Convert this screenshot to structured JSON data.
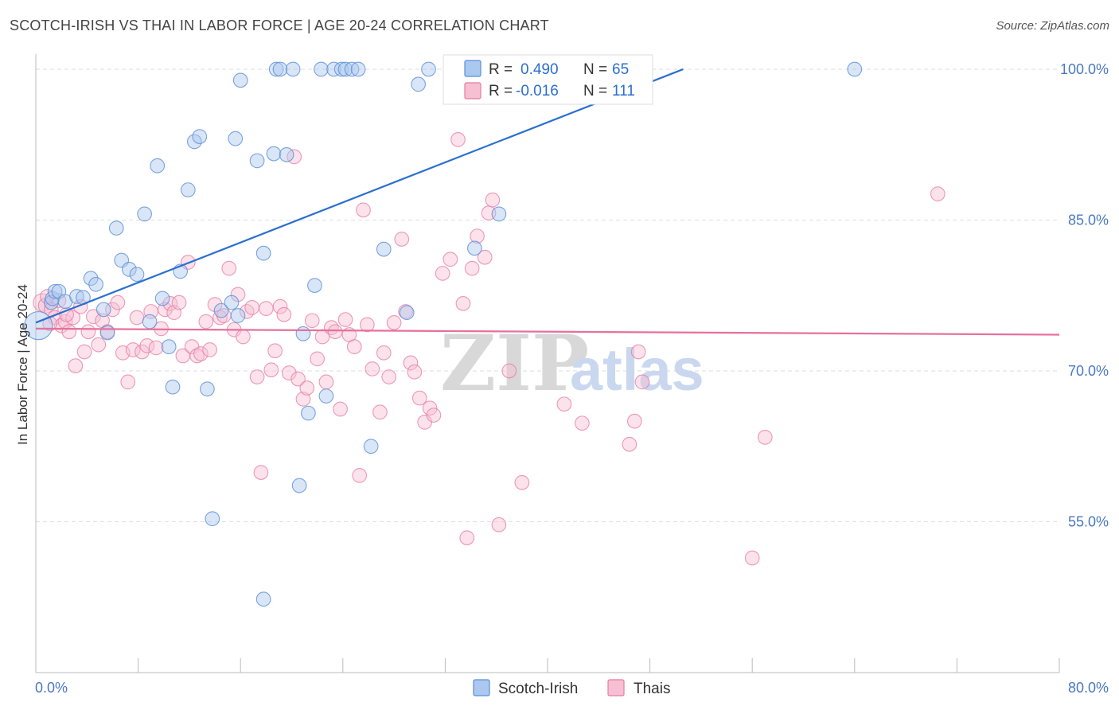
{
  "title": "SCOTCH-IRISH VS THAI IN LABOR FORCE | AGE 20-24 CORRELATION CHART",
  "source": "Source: ZipAtlas.com",
  "watermark": {
    "zip": "ZIP",
    "atlas": "atlas"
  },
  "colors": {
    "blue": "#5b8fd6",
    "blue_fill": "#aac8f0",
    "blue_line": "#2b6fd0",
    "pink": "#e87aa2",
    "pink_fill": "#f6bfd2",
    "pink_line": "#e7709b",
    "tick_text": "#4a78c2",
    "grid": "#dddddd"
  },
  "legend": {
    "rows": [
      {
        "r_label": "R =",
        "r_value": "0.490",
        "n_label": "N =",
        "n_value": "65"
      },
      {
        "r_label": "R =",
        "r_value": "-0.016",
        "n_label": "N =",
        "n_value": "111"
      }
    ]
  },
  "bottom_legend": [
    "Scotch-Irish",
    "Thais"
  ],
  "chart_data": {
    "type": "scatter",
    "title": "SCOTCH-IRISH VS THAI IN LABOR FORCE | AGE 20-24 CORRELATION CHART",
    "xlabel": "",
    "ylabel": "In Labor Force | Age 20-24",
    "xlim": [
      0,
      80
    ],
    "ylim": [
      40,
      101.5
    ],
    "x_tick_labels": [
      "0.0%",
      "80.0%"
    ],
    "y_ticks": [
      55,
      70,
      85,
      100
    ],
    "y_tick_labels": [
      "55.0%",
      "70.0%",
      "85.0%",
      "100.0%"
    ],
    "series": [
      {
        "name": "Scotch-Irish",
        "color": "blue",
        "r": 0.49,
        "n": 65,
        "trend": {
          "x0": 0,
          "y0": 74.8,
          "x1": 50.6,
          "y1": 100.0
        },
        "points": [
          [
            0.2,
            74.5,
            22
          ],
          [
            1.2,
            76.8,
            11
          ],
          [
            1.3,
            77.2,
            11
          ],
          [
            1.5,
            77.9,
            11
          ],
          [
            1.8,
            77.9,
            11
          ],
          [
            2.3,
            76.9,
            11
          ],
          [
            3.2,
            77.4,
            11
          ],
          [
            3.7,
            77.3,
            11
          ],
          [
            4.3,
            79.2,
            11
          ],
          [
            4.7,
            78.6,
            11
          ],
          [
            5.3,
            76.1,
            11
          ],
          [
            5.6,
            73.8,
            11
          ],
          [
            6.3,
            84.2,
            11
          ],
          [
            6.7,
            81.0,
            11
          ],
          [
            7.3,
            80.1,
            11
          ],
          [
            7.9,
            79.6,
            11
          ],
          [
            8.5,
            85.6,
            11
          ],
          [
            8.9,
            74.9,
            11
          ],
          [
            9.5,
            90.4,
            11
          ],
          [
            9.9,
            77.2,
            11
          ],
          [
            10.4,
            72.4,
            11
          ],
          [
            10.7,
            68.4,
            11
          ],
          [
            11.3,
            79.9,
            11
          ],
          [
            11.9,
            88.0,
            11
          ],
          [
            12.4,
            92.8,
            11
          ],
          [
            12.8,
            93.3,
            11
          ],
          [
            13.4,
            68.2,
            11
          ],
          [
            13.8,
            55.3,
            11
          ],
          [
            14.5,
            76.0,
            11
          ],
          [
            15.3,
            76.8,
            11
          ],
          [
            15.6,
            93.1,
            11
          ],
          [
            15.8,
            75.5,
            11
          ],
          [
            16.0,
            98.9,
            11
          ],
          [
            17.3,
            90.9,
            11
          ],
          [
            17.8,
            81.7,
            11
          ],
          [
            17.8,
            47.3,
            11
          ],
          [
            18.6,
            91.6,
            11
          ],
          [
            18.8,
            100.0,
            11
          ],
          [
            19.1,
            100.0,
            11
          ],
          [
            19.6,
            91.5,
            11
          ],
          [
            20.1,
            100.0,
            11
          ],
          [
            20.6,
            58.6,
            11
          ],
          [
            20.9,
            73.7,
            11
          ],
          [
            21.3,
            65.8,
            11
          ],
          [
            21.8,
            78.5,
            11
          ],
          [
            22.3,
            100.0,
            11
          ],
          [
            22.7,
            67.5,
            11
          ],
          [
            23.3,
            100.0,
            11
          ],
          [
            23.9,
            100.0,
            11
          ],
          [
            24.2,
            100.0,
            11
          ],
          [
            24.7,
            100.0,
            11
          ],
          [
            25.2,
            100.0,
            11
          ],
          [
            26.2,
            62.5,
            11
          ],
          [
            27.2,
            82.1,
            11
          ],
          [
            29.0,
            75.8,
            11
          ],
          [
            29.9,
            98.5,
            11
          ],
          [
            30.7,
            100.0,
            11
          ],
          [
            32.9,
            100.0,
            11
          ],
          [
            34.2,
            100.0,
            11
          ],
          [
            34.3,
            82.2,
            11
          ],
          [
            36.1,
            100.0,
            11
          ],
          [
            36.2,
            85.6,
            11
          ],
          [
            38.9,
            100.0,
            11
          ],
          [
            44.4,
            100.0,
            11
          ],
          [
            64.0,
            100.0,
            11
          ]
        ]
      },
      {
        "name": "Thais",
        "color": "pink",
        "r": -0.016,
        "n": 111,
        "trend": {
          "x0": 0,
          "y0": 74.2,
          "x1": 80,
          "y1": 73.6
        },
        "points": [
          [
            0.5,
            76.8,
            14
          ],
          [
            0.8,
            76.5,
            12
          ],
          [
            1.2,
            76.1,
            11
          ],
          [
            1.5,
            75.3,
            11
          ],
          [
            1.8,
            77.0,
            11
          ],
          [
            2.0,
            74.5,
            11
          ],
          [
            2.3,
            74.9,
            11
          ],
          [
            2.6,
            73.9,
            11
          ],
          [
            2.9,
            75.3,
            11
          ],
          [
            3.1,
            70.5,
            11
          ],
          [
            3.5,
            76.4,
            11
          ],
          [
            3.8,
            71.9,
            11
          ],
          [
            4.1,
            73.9,
            11
          ],
          [
            4.5,
            75.4,
            11
          ],
          [
            4.9,
            72.6,
            11
          ],
          [
            5.2,
            75.0,
            11
          ],
          [
            5.6,
            73.9,
            11
          ],
          [
            6.0,
            76.1,
            11
          ],
          [
            6.4,
            76.8,
            11
          ],
          [
            6.8,
            71.8,
            11
          ],
          [
            7.2,
            68.9,
            11
          ],
          [
            7.6,
            72.1,
            11
          ],
          [
            7.9,
            75.3,
            11
          ],
          [
            8.3,
            71.9,
            11
          ],
          [
            8.7,
            72.5,
            11
          ],
          [
            9.0,
            75.9,
            11
          ],
          [
            9.4,
            72.3,
            11
          ],
          [
            9.8,
            74.2,
            11
          ],
          [
            10.1,
            76.1,
            11
          ],
          [
            10.5,
            76.7,
            11
          ],
          [
            10.8,
            75.8,
            11
          ],
          [
            11.2,
            76.8,
            11
          ],
          [
            11.5,
            71.5,
            11
          ],
          [
            11.9,
            80.8,
            11
          ],
          [
            12.2,
            72.4,
            11
          ],
          [
            12.6,
            71.5,
            11
          ],
          [
            12.9,
            71.7,
            11
          ],
          [
            13.3,
            74.9,
            11
          ],
          [
            13.6,
            72.1,
            11
          ],
          [
            14.0,
            76.6,
            11
          ],
          [
            14.4,
            75.3,
            11
          ],
          [
            14.7,
            75.5,
            11
          ],
          [
            15.1,
            80.2,
            11
          ],
          [
            15.5,
            74.1,
            11
          ],
          [
            15.8,
            77.6,
            11
          ],
          [
            16.2,
            73.4,
            11
          ],
          [
            16.5,
            75.9,
            11
          ],
          [
            16.9,
            76.3,
            11
          ],
          [
            17.3,
            69.4,
            11
          ],
          [
            17.6,
            59.9,
            11
          ],
          [
            18.0,
            76.2,
            11
          ],
          [
            18.4,
            70.1,
            11
          ],
          [
            18.7,
            72.0,
            11
          ],
          [
            19.1,
            76.4,
            11
          ],
          [
            19.4,
            75.6,
            11
          ],
          [
            19.8,
            69.8,
            11
          ],
          [
            20.2,
            91.3,
            11
          ],
          [
            20.5,
            69.2,
            11
          ],
          [
            20.9,
            67.2,
            11
          ],
          [
            21.2,
            68.3,
            11
          ],
          [
            21.6,
            75.0,
            11
          ],
          [
            22.0,
            71.2,
            11
          ],
          [
            22.4,
            73.4,
            11
          ],
          [
            22.7,
            68.9,
            11
          ],
          [
            23.1,
            74.3,
            11
          ],
          [
            23.4,
            73.9,
            11
          ],
          [
            23.8,
            66.2,
            11
          ],
          [
            24.2,
            75.1,
            11
          ],
          [
            24.5,
            73.6,
            11
          ],
          [
            24.9,
            72.4,
            11
          ],
          [
            25.3,
            59.6,
            11
          ],
          [
            25.6,
            86.0,
            11
          ],
          [
            25.9,
            74.6,
            11
          ],
          [
            26.3,
            70.2,
            11
          ],
          [
            26.9,
            65.9,
            11
          ],
          [
            27.2,
            71.8,
            11
          ],
          [
            27.6,
            69.4,
            11
          ],
          [
            28.0,
            74.8,
            11
          ],
          [
            28.6,
            83.1,
            11
          ],
          [
            28.9,
            75.9,
            11
          ],
          [
            29.3,
            70.8,
            11
          ],
          [
            29.6,
            69.9,
            11
          ],
          [
            30.0,
            67.3,
            11
          ],
          [
            30.4,
            64.9,
            11
          ],
          [
            30.8,
            66.3,
            11
          ],
          [
            31.1,
            65.6,
            11
          ],
          [
            31.8,
            79.7,
            11
          ],
          [
            32.4,
            81.1,
            11
          ],
          [
            33.0,
            93.0,
            11
          ],
          [
            33.4,
            76.7,
            11
          ],
          [
            33.7,
            53.4,
            11
          ],
          [
            34.1,
            80.2,
            11
          ],
          [
            34.5,
            83.4,
            11
          ],
          [
            35.1,
            81.3,
            11
          ],
          [
            35.4,
            85.7,
            11
          ],
          [
            35.7,
            87.0,
            11
          ],
          [
            36.2,
            54.7,
            11
          ],
          [
            37.0,
            70.0,
            11
          ],
          [
            38.0,
            58.9,
            11
          ],
          [
            41.3,
            66.7,
            11
          ],
          [
            42.7,
            64.8,
            11
          ],
          [
            46.4,
            62.7,
            11
          ],
          [
            46.8,
            65.0,
            11
          ],
          [
            47.1,
            71.9,
            11
          ],
          [
            47.4,
            68.9,
            11
          ],
          [
            56.0,
            51.4,
            11
          ],
          [
            57.0,
            63.4,
            11
          ],
          [
            70.5,
            87.6,
            11
          ],
          [
            0.9,
            77.4,
            11
          ],
          [
            1.1,
            74.7,
            11
          ],
          [
            2.4,
            75.6,
            11
          ]
        ]
      }
    ]
  }
}
